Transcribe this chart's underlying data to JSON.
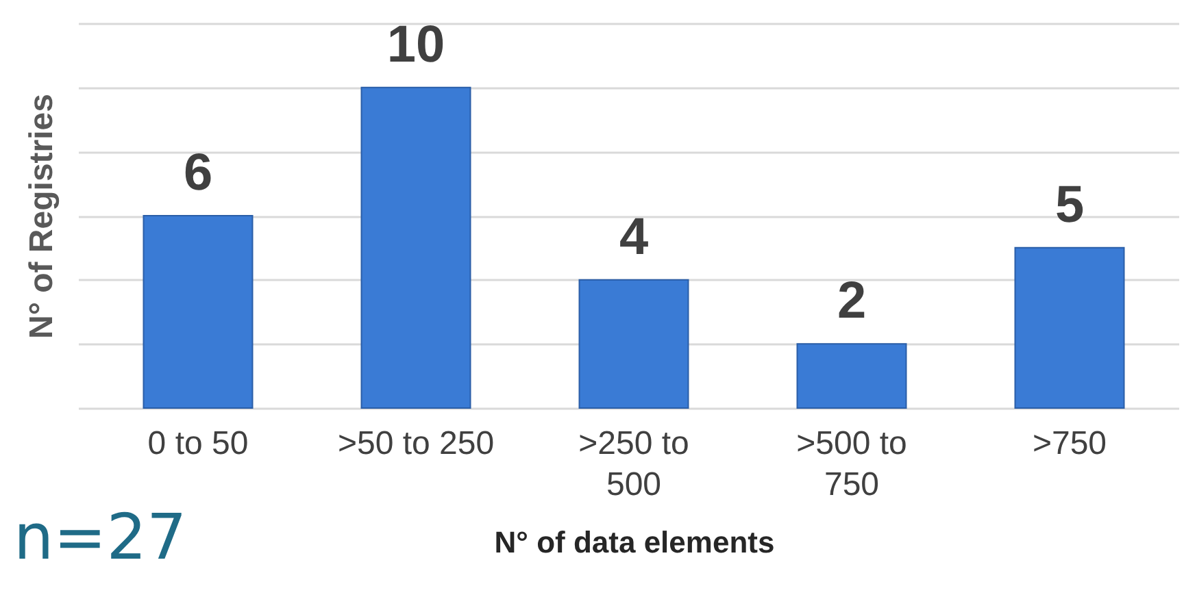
{
  "chart_data": {
    "type": "bar",
    "xlabel": "N° of data elements",
    "ylabel": "N° of Registries",
    "categories": [
      "0  to 50",
      ">50 to 250",
      ">250 to 500",
      ">500 to 750",
      ">750"
    ],
    "values": [
      6,
      10,
      4,
      2,
      5
    ],
    "color": "#3a7bd5",
    "data_labels": true,
    "ylim": [
      0,
      12
    ],
    "yticks": [
      0,
      2,
      4,
      6,
      8,
      10,
      12
    ],
    "tick_labels": "x",
    "grid": "y",
    "annotations": [
      "n=27"
    ]
  }
}
